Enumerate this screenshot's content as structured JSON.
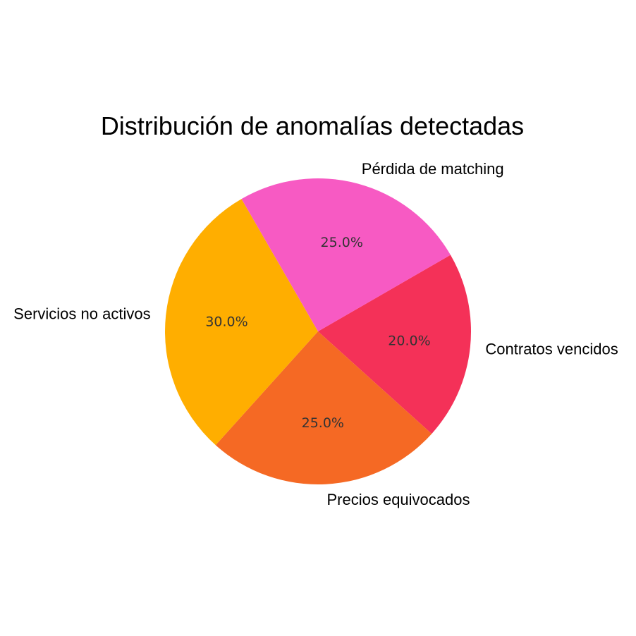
{
  "chart_data": {
    "type": "pie",
    "title": "Distribución de anomalías detectadas",
    "categories": [
      "Contratos vencidos",
      "Precios equivocados",
      "Servicios no activos",
      "Pérdida de matching"
    ],
    "values": [
      20.0,
      25.0,
      30.0,
      25.0
    ],
    "percent_labels": [
      "20.0%",
      "25.0%",
      "30.0%",
      "25.0%"
    ],
    "colors": [
      "#f43158",
      "#f56924",
      "#ffae00",
      "#f75ac3"
    ],
    "start_angle_deg": 30,
    "direction": "clockwise"
  }
}
